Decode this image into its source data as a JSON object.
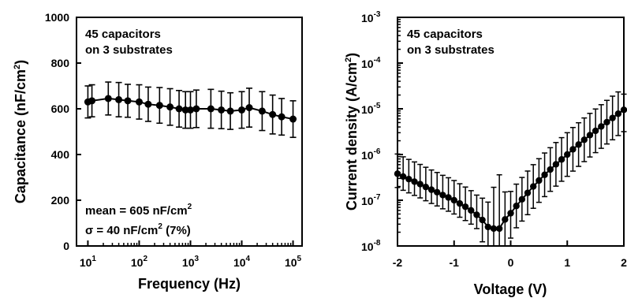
{
  "chart_data": [
    {
      "type": "scatter",
      "panel": "left",
      "xlabel": "Frequency (Hz)",
      "ylabel": "Capacitance (nF/cm²)",
      "x_scale": "log",
      "xlim": [
        6,
        150000
      ],
      "ylim": [
        0,
        1000
      ],
      "y_ticks": [
        "0",
        "200",
        "400",
        "600",
        "800",
        "1000"
      ],
      "x_ticks": [
        {
          "base": "10",
          "exp": "1",
          "value": 10
        },
        {
          "base": "10",
          "exp": "2",
          "value": 100
        },
        {
          "base": "10",
          "exp": "3",
          "value": 1000
        },
        {
          "base": "10",
          "exp": "4",
          "value": 10000
        },
        {
          "base": "10",
          "exp": "5",
          "value": 100000
        }
      ],
      "annotation_top": [
        "45 capacitors",
        "on 3 substrates"
      ],
      "annotation_bottom": {
        "line1": "mean = 605 nF/cm",
        "line1_sup": "2",
        "line2_a": "σ = 40 nF/cm",
        "line2_sup": "2",
        "line2_b": " (7%)"
      },
      "series": [
        {
          "x": [
            10,
            12,
            25,
            40,
            60,
            100,
            150,
            250,
            400,
            600,
            800,
            1000,
            1300,
            2500,
            4000,
            6000,
            10000,
            14000,
            25000,
            40000,
            60000,
            100000
          ],
          "y": [
            630,
            635,
            645,
            640,
            635,
            630,
            620,
            615,
            608,
            600,
            595,
            595,
            600,
            600,
            595,
            590,
            595,
            605,
            590,
            575,
            565,
            555
          ],
          "err": [
            70,
            70,
            72,
            75,
            72,
            75,
            75,
            78,
            80,
            80,
            80,
            80,
            82,
            85,
            82,
            80,
            80,
            85,
            85,
            85,
            80,
            80
          ]
        }
      ]
    },
    {
      "type": "line",
      "panel": "right",
      "xlabel": "Voltage (V)",
      "ylabel": "Current density (A/cm²)",
      "y_scale": "log",
      "xlim": [
        -2,
        2
      ],
      "ylim": [
        1e-08,
        0.001
      ],
      "x_ticks": [
        "-2",
        "-1",
        "0",
        "1",
        "2"
      ],
      "y_ticks": [
        {
          "base": "10",
          "exp": "-8",
          "value": 1e-08
        },
        {
          "base": "10",
          "exp": "-7",
          "value": 1e-07
        },
        {
          "base": "10",
          "exp": "-6",
          "value": 1e-06
        },
        {
          "base": "10",
          "exp": "-5",
          "value": 1e-05
        },
        {
          "base": "10",
          "exp": "-4",
          "value": 0.0001
        },
        {
          "base": "10",
          "exp": "-3",
          "value": 0.001
        }
      ],
      "annotation_top": [
        "45 capacitors",
        "on 3 substrates"
      ],
      "series": [
        {
          "x": [
            -2.0,
            -1.9,
            -1.8,
            -1.7,
            -1.6,
            -1.5,
            -1.4,
            -1.3,
            -1.2,
            -1.1,
            -1.0,
            -0.9,
            -0.8,
            -0.7,
            -0.6,
            -0.5,
            -0.4,
            -0.3,
            -0.2,
            -0.1,
            0.0,
            0.1,
            0.2,
            0.3,
            0.4,
            0.5,
            0.6,
            0.7,
            0.8,
            0.9,
            1.0,
            1.1,
            1.2,
            1.3,
            1.4,
            1.5,
            1.6,
            1.7,
            1.8,
            1.9,
            2.0
          ],
          "y": [
            3.8e-07,
            3.3e-07,
            2.9e-07,
            2.55e-07,
            2.25e-07,
            1.95e-07,
            1.7e-07,
            1.5e-07,
            1.3e-07,
            1.15e-07,
            1e-07,
            8.5e-08,
            7.2e-08,
            6e-08,
            4.8e-08,
            3.7e-08,
            2.6e-08,
            2.4e-08,
            2.4e-08,
            3.8e-08,
            5.2e-08,
            7.5e-08,
            1.05e-07,
            1.45e-07,
            2e-07,
            2.7e-07,
            3.6e-07,
            4.7e-07,
            6.1e-07,
            7.8e-07,
            1e-06,
            1.3e-06,
            1.65e-06,
            2.1e-06,
            2.65e-06,
            3.3e-06,
            4.1e-06,
            5.1e-06,
            6.3e-06,
            7.8e-06,
            9.5e-06
          ],
          "err_up": [
            2.7,
            2.7,
            2.7,
            2.7,
            2.7,
            2.7,
            2.7,
            2.7,
            2.7,
            2.7,
            2.7,
            2.7,
            2.7,
            2.7,
            2.7,
            3.0,
            3.5,
            8.0,
            15.0,
            4.0,
            3.0,
            3.0,
            3.0,
            3.0,
            3.0,
            3.0,
            3.0,
            3.0,
            3.0,
            3.0,
            3.0,
            3.0,
            3.0,
            3.0,
            3.0,
            3.0,
            3.0,
            3.0,
            3.0,
            3.0,
            2.2
          ],
          "err_dn": [
            2.0,
            2.0,
            2.0,
            2.0,
            2.0,
            2.0,
            2.0,
            2.0,
            2.0,
            2.0,
            2.0,
            2.0,
            2.0,
            2.0,
            2.0,
            3.0,
            3.5,
            3.0,
            3.0,
            4.0,
            3.5,
            3.0,
            3.0,
            3.0,
            3.0,
            3.0,
            3.0,
            3.0,
            3.0,
            3.0,
            3.0,
            3.0,
            3.0,
            3.0,
            3.0,
            3.0,
            3.0,
            3.0,
            3.0,
            3.0,
            3.0
          ]
        }
      ]
    }
  ]
}
